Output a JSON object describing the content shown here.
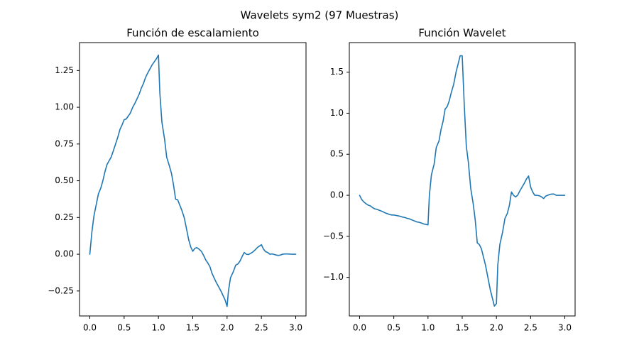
{
  "figure": {
    "suptitle": "Wavelets sym2 (97 Muestras)",
    "line_color": "#1f77b4"
  },
  "chart_data": [
    {
      "type": "line",
      "title": "Función de escalamiento",
      "xlabel": "",
      "ylabel": "",
      "xlim": [
        -0.15,
        3.15
      ],
      "ylim": [
        -0.42,
        1.44
      ],
      "xticks": [
        0.0,
        0.5,
        1.0,
        1.5,
        2.0,
        2.5,
        3.0
      ],
      "xtick_labels": [
        "0.0",
        "0.5",
        "1.0",
        "1.5",
        "2.0",
        "2.5",
        "3.0"
      ],
      "yticks": [
        -0.25,
        0.0,
        0.25,
        0.5,
        0.75,
        1.0,
        1.25
      ],
      "ytick_labels": [
        "−0.25",
        "0.00",
        "0.25",
        "0.50",
        "0.75",
        "1.00",
        "1.25"
      ],
      "grid": false,
      "series": [
        {
          "x": [
            0.0,
            0.03,
            0.06,
            0.09,
            0.125,
            0.16,
            0.19,
            0.22,
            0.25,
            0.28,
            0.31,
            0.34,
            0.375,
            0.41,
            0.44,
            0.47,
            0.5,
            0.53,
            0.56,
            0.59,
            0.625,
            0.66,
            0.69,
            0.72,
            0.75,
            0.78,
            0.81,
            0.84,
            0.875,
            0.91,
            0.94,
            0.97,
            1.0,
            1.02,
            1.05,
            1.09,
            1.12,
            1.16,
            1.19,
            1.22,
            1.25,
            1.28,
            1.31,
            1.34,
            1.375,
            1.41,
            1.44,
            1.47,
            1.5,
            1.53,
            1.56,
            1.59,
            1.625,
            1.66,
            1.69,
            1.72,
            1.75,
            1.78,
            1.81,
            1.84,
            1.875,
            1.91,
            1.94,
            1.97,
            2.0,
            2.02,
            2.05,
            2.09,
            2.125,
            2.16,
            2.19,
            2.22,
            2.25,
            2.28,
            2.31,
            2.34,
            2.375,
            2.41,
            2.44,
            2.47,
            2.5,
            2.53,
            2.56,
            2.59,
            2.625,
            2.66,
            2.69,
            2.72,
            2.75,
            2.78,
            2.81,
            2.84,
            2.875,
            2.91,
            2.94,
            2.97,
            3.0
          ],
          "values": [
            0.0,
            0.15,
            0.26,
            0.33,
            0.41,
            0.45,
            0.5,
            0.56,
            0.61,
            0.635,
            0.66,
            0.7,
            0.75,
            0.8,
            0.85,
            0.88,
            0.915,
            0.92,
            0.94,
            0.96,
            1.0,
            1.03,
            1.06,
            1.09,
            1.13,
            1.16,
            1.2,
            1.23,
            1.26,
            1.29,
            1.31,
            1.33,
            1.355,
            1.1,
            0.9,
            0.78,
            0.66,
            0.6,
            0.55,
            0.47,
            0.375,
            0.37,
            0.335,
            0.3,
            0.25,
            0.17,
            0.1,
            0.05,
            0.02,
            0.04,
            0.045,
            0.035,
            0.02,
            -0.01,
            -0.04,
            -0.06,
            -0.085,
            -0.13,
            -0.16,
            -0.19,
            -0.22,
            -0.25,
            -0.28,
            -0.31,
            -0.355,
            -0.25,
            -0.16,
            -0.12,
            -0.075,
            -0.065,
            -0.045,
            -0.015,
            0.012,
            0.0,
            -0.002,
            0.005,
            0.015,
            0.03,
            0.045,
            0.055,
            0.065,
            0.035,
            0.018,
            0.012,
            0.0,
            0.002,
            -0.002,
            -0.006,
            -0.008,
            -0.005,
            0.0,
            0.002,
            0.002,
            0.001,
            0.0,
            0.0,
            0.0
          ]
        }
      ]
    },
    {
      "type": "line",
      "title": "Función Wavelet",
      "xlabel": "",
      "ylabel": "",
      "xlim": [
        -0.15,
        3.15
      ],
      "ylim": [
        -1.47,
        1.86
      ],
      "xticks": [
        0.0,
        0.5,
        1.0,
        1.5,
        2.0,
        2.5,
        3.0
      ],
      "xtick_labels": [
        "0.0",
        "0.5",
        "1.0",
        "1.5",
        "2.0",
        "2.5",
        "3.0"
      ],
      "yticks": [
        -1.0,
        -0.5,
        0.0,
        0.5,
        1.0,
        1.5
      ],
      "ytick_labels": [
        "−1.0",
        "−0.5",
        "0.0",
        "0.5",
        "1.0",
        "1.5"
      ],
      "grid": false,
      "series": [
        {
          "x": [
            0.0,
            0.03,
            0.06,
            0.09,
            0.125,
            0.16,
            0.19,
            0.22,
            0.25,
            0.28,
            0.31,
            0.34,
            0.375,
            0.41,
            0.44,
            0.47,
            0.5,
            0.53,
            0.56,
            0.59,
            0.625,
            0.66,
            0.69,
            0.72,
            0.75,
            0.78,
            0.81,
            0.84,
            0.875,
            0.91,
            0.94,
            0.97,
            1.0,
            1.02,
            1.05,
            1.09,
            1.12,
            1.16,
            1.19,
            1.22,
            1.25,
            1.28,
            1.31,
            1.34,
            1.375,
            1.41,
            1.44,
            1.47,
            1.5,
            1.53,
            1.56,
            1.59,
            1.625,
            1.66,
            1.69,
            1.72,
            1.75,
            1.78,
            1.81,
            1.84,
            1.875,
            1.91,
            1.94,
            1.97,
            2.0,
            2.02,
            2.05,
            2.09,
            2.125,
            2.16,
            2.19,
            2.22,
            2.25,
            2.28,
            2.31,
            2.34,
            2.375,
            2.41,
            2.44,
            2.47,
            2.5,
            2.53,
            2.56,
            2.59,
            2.625,
            2.66,
            2.69,
            2.72,
            2.75,
            2.78,
            2.81,
            2.84,
            2.875,
            2.91,
            2.94,
            2.97,
            3.0
          ],
          "values": [
            0.0,
            -0.05,
            -0.08,
            -0.1,
            -0.12,
            -0.13,
            -0.15,
            -0.165,
            -0.17,
            -0.18,
            -0.19,
            -0.2,
            -0.215,
            -0.225,
            -0.235,
            -0.24,
            -0.24,
            -0.245,
            -0.25,
            -0.255,
            -0.265,
            -0.27,
            -0.28,
            -0.285,
            -0.295,
            -0.305,
            -0.315,
            -0.325,
            -0.33,
            -0.34,
            -0.35,
            -0.355,
            -0.36,
            0.0,
            0.25,
            0.38,
            0.58,
            0.66,
            0.8,
            0.9,
            1.05,
            1.08,
            1.15,
            1.25,
            1.35,
            1.5,
            1.6,
            1.7,
            1.7,
            1.1,
            0.6,
            0.4,
            0.08,
            -0.1,
            -0.3,
            -0.58,
            -0.6,
            -0.65,
            -0.75,
            -0.85,
            -1.0,
            -1.15,
            -1.25,
            -1.35,
            -1.32,
            -0.85,
            -0.6,
            -0.45,
            -0.28,
            -0.22,
            -0.12,
            0.04,
            0.0,
            -0.02,
            0.0,
            0.05,
            0.1,
            0.15,
            0.2,
            0.235,
            0.1,
            0.04,
            0.0,
            0.0,
            -0.005,
            -0.02,
            -0.04,
            -0.01,
            0.0,
            0.01,
            0.015,
            0.015,
            0.0,
            0.0,
            0.0,
            0.0,
            0.0
          ]
        }
      ]
    }
  ]
}
